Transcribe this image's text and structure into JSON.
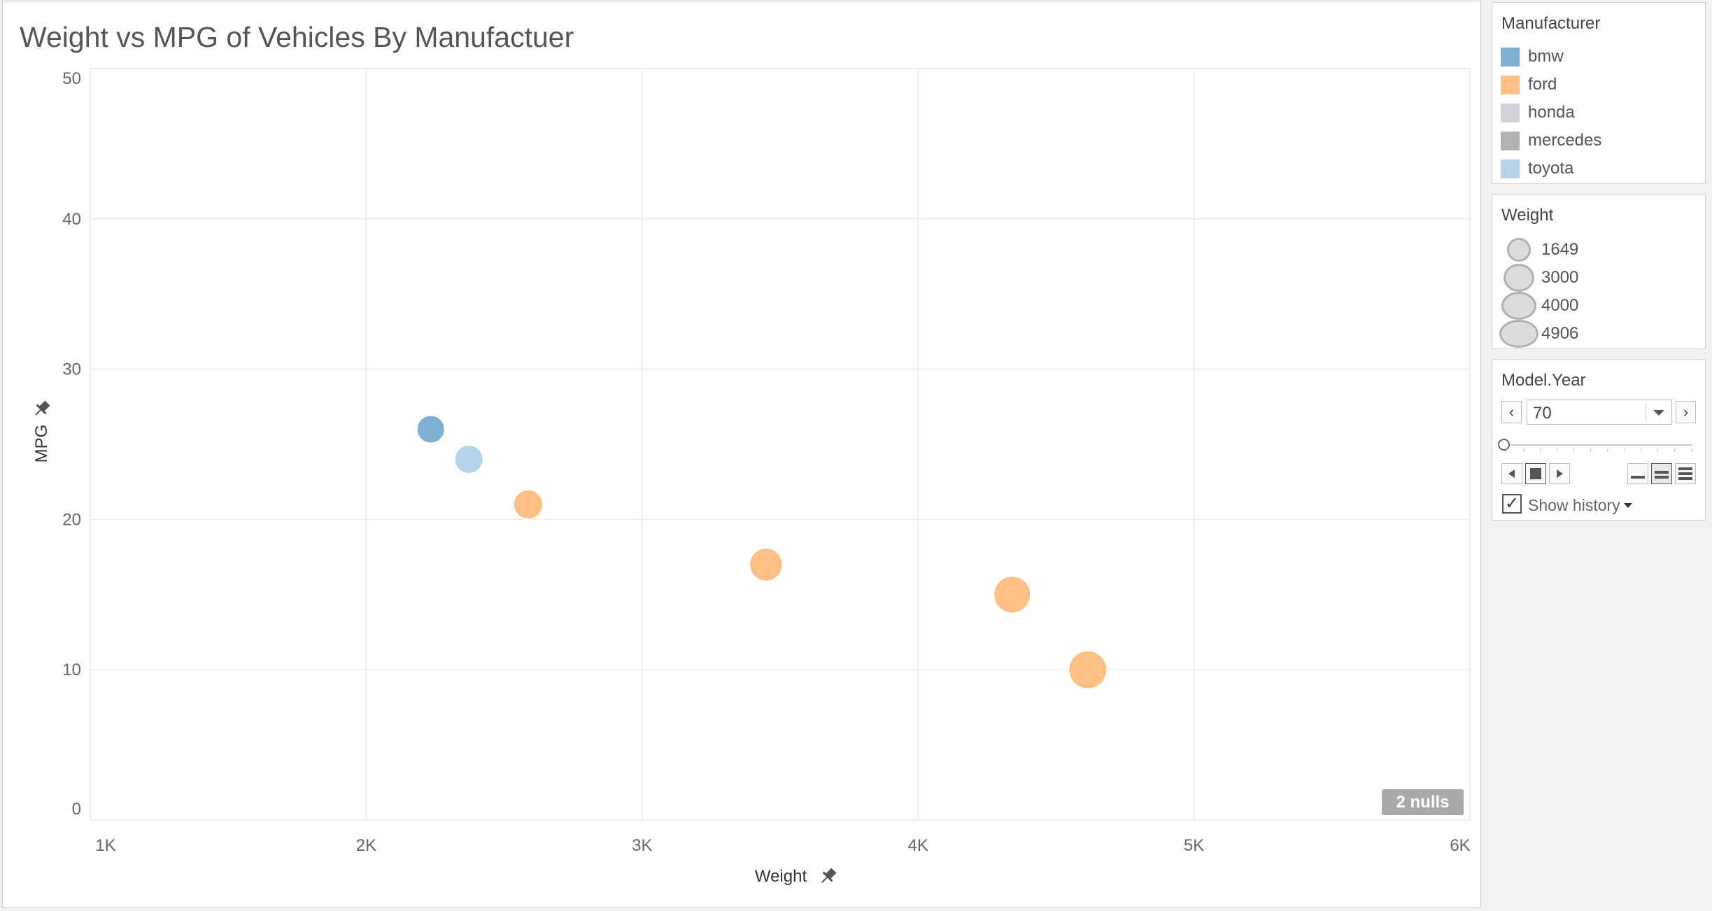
{
  "chart_title": "Weight vs MPG of Vehicles By Manufactuer",
  "nulls_badge": "2 nulls",
  "colors": {
    "bmw": "#7fb0d3",
    "ford": "#ffbf85",
    "honda": "#d0d3d8",
    "mercedes": "#b1b3b8",
    "toyota": "#b4d3ea"
  },
  "chart_data": {
    "type": "scatter",
    "title": "Weight vs MPG of Vehicles By Manufactuer",
    "xlabel": "Weight",
    "ylabel": "MPG",
    "xlim": [
      1000,
      6000
    ],
    "ylim": [
      0,
      50
    ],
    "x_ticks": [
      1000,
      2000,
      3000,
      4000,
      5000,
      6000
    ],
    "x_tick_labels": [
      "1K",
      "2K",
      "3K",
      "4K",
      "5K",
      "6K"
    ],
    "y_ticks": [
      0,
      10,
      20,
      30,
      40,
      50
    ],
    "y_tick_labels": [
      "0",
      "10",
      "20",
      "30",
      "40",
      "50"
    ],
    "grid": true,
    "points": [
      {
        "manufacturer": "bmw",
        "weight": 2234,
        "mpg": 26
      },
      {
        "manufacturer": "toyota",
        "weight": 2372,
        "mpg": 24
      },
      {
        "manufacturer": "ford",
        "weight": 2587,
        "mpg": 21
      },
      {
        "manufacturer": "ford",
        "weight": 3449,
        "mpg": 17
      },
      {
        "manufacturer": "ford",
        "weight": 4341,
        "mpg": 15
      },
      {
        "manufacturer": "ford",
        "weight": 4615,
        "mpg": 10
      }
    ],
    "size_by": "Weight",
    "size_range": [
      1649,
      4906
    ]
  },
  "legend_color": {
    "title": "Manufacturer",
    "items": [
      "bmw",
      "ford",
      "honda",
      "mercedes",
      "toyota"
    ]
  },
  "legend_size": {
    "title": "Weight",
    "items": [
      "1649",
      "3000",
      "4000",
      "4906"
    ]
  },
  "filter": {
    "title": "Model.Year",
    "value": "70",
    "show_history_label": "Show history",
    "show_history_checked": true
  }
}
